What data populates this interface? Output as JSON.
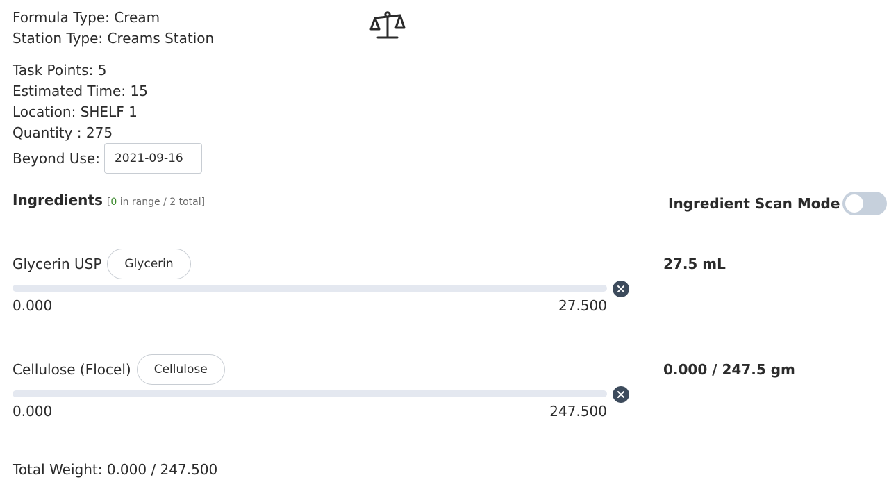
{
  "formula": {
    "formula_type_label": "Formula Type:",
    "formula_type": "Cream",
    "station_type_label": "Station Type:",
    "station_type": "Creams Station"
  },
  "details": {
    "task_points_label": "Task Points:",
    "task_points": "5",
    "estimated_time_label": "Estimated Time:",
    "estimated_time": "15",
    "location_label": "Location:",
    "location": "SHELF 1",
    "quantity_label": "Quantity :",
    "quantity": "275",
    "beyond_use_label": "Beyond Use:",
    "beyond_use_value": "2021-09-16"
  },
  "ingredients_header": {
    "title": "Ingredients",
    "open_bracket": "[",
    "in_range_count": "0",
    "in_range_text": " in range / 2 total]"
  },
  "scan_mode": {
    "label": "Ingredient Scan Mode",
    "enabled": false
  },
  "ingredients": [
    {
      "name": "Glycerin USP",
      "tag": "Glycerin",
      "amount": "27.5 mL",
      "min": "0.000",
      "max": "27.500",
      "progress": 0
    },
    {
      "name": "Cellulose (Flocel)",
      "tag": "Cellulose",
      "amount": "0.000 / 247.5 gm",
      "min": "0.000",
      "max": "247.500",
      "progress": 0
    }
  ],
  "total": {
    "label": "Total Weight:",
    "value": "0.000 / 247.500"
  },
  "colors": {
    "in_range": "#3c8a2e",
    "track": "#e4e8f0",
    "clear_button": "#3d4b5c",
    "toggle_off": "#c6d0dc"
  },
  "icons": {
    "header": "scale-balance-icon",
    "clear": "close-circle-icon"
  }
}
